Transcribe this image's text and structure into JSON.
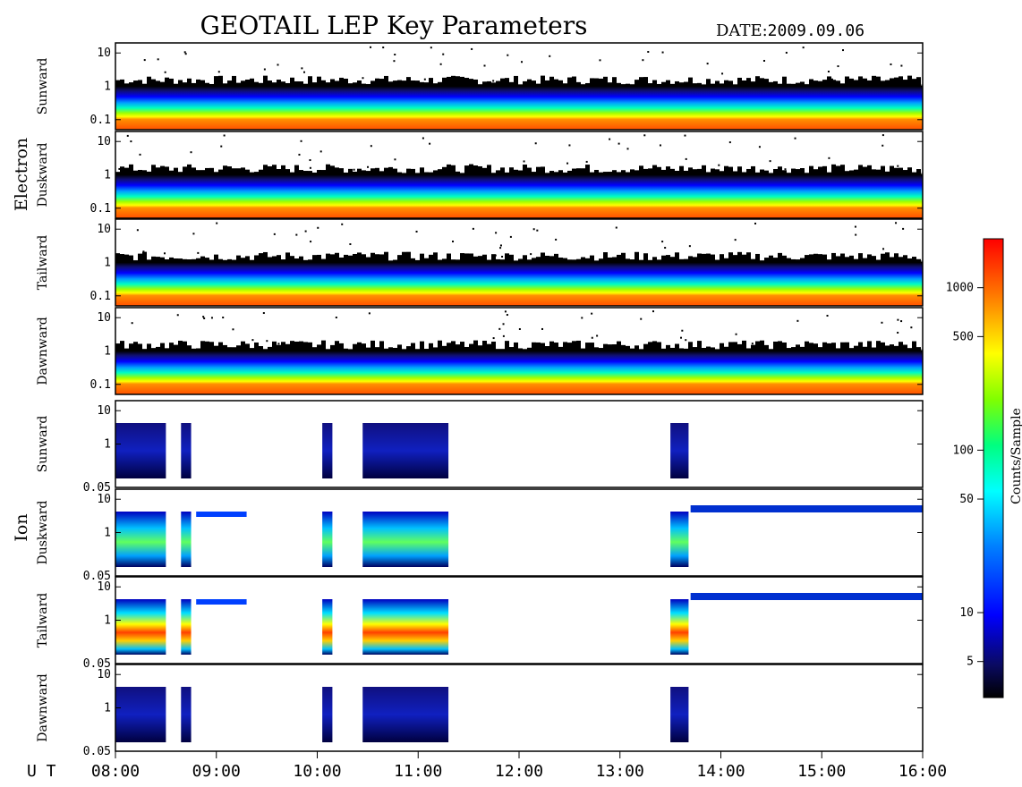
{
  "header": {
    "title": "GEOTAIL LEP Key Parameters",
    "date_label": "DATE:",
    "date_value": "2009.09.06"
  },
  "chart_data": {
    "type": "heatmap",
    "time_axis": {
      "label": "U T",
      "range": [
        "08:00",
        "16:00"
      ],
      "ticks": [
        "08:00",
        "09:00",
        "10:00",
        "11:00",
        "12:00",
        "13:00",
        "14:00",
        "15:00",
        "16:00"
      ]
    },
    "groups": [
      {
        "name": "Electron",
        "panels": [
          "Sunward",
          "Duskward",
          "Tailward",
          "Dawnward"
        ],
        "y_ticks": [
          "10",
          "1",
          "0.1"
        ],
        "ylim": [
          0.05,
          20
        ],
        "y_scale": "log"
      },
      {
        "name": "Ion",
        "panels": [
          "Sunward",
          "Duskward",
          "Tailward",
          "Dawnward"
        ],
        "y_ticks": [
          "10",
          "1",
          "0.05"
        ],
        "ylim": [
          0.05,
          20
        ],
        "y_scale": "log"
      }
    ],
    "colorbar": {
      "label": "Counts/Sample",
      "scale": "log",
      "range": [
        3,
        2000
      ],
      "ticks": [
        "1000",
        "500",
        "100",
        "50",
        "10",
        "5"
      ],
      "colors": [
        "#000000",
        "#0a0a60",
        "#0000ff",
        "#0080ff",
        "#00ffff",
        "#00ff80",
        "#80ff00",
        "#ffff00",
        "#ff8000",
        "#ff0000"
      ]
    }
  }
}
